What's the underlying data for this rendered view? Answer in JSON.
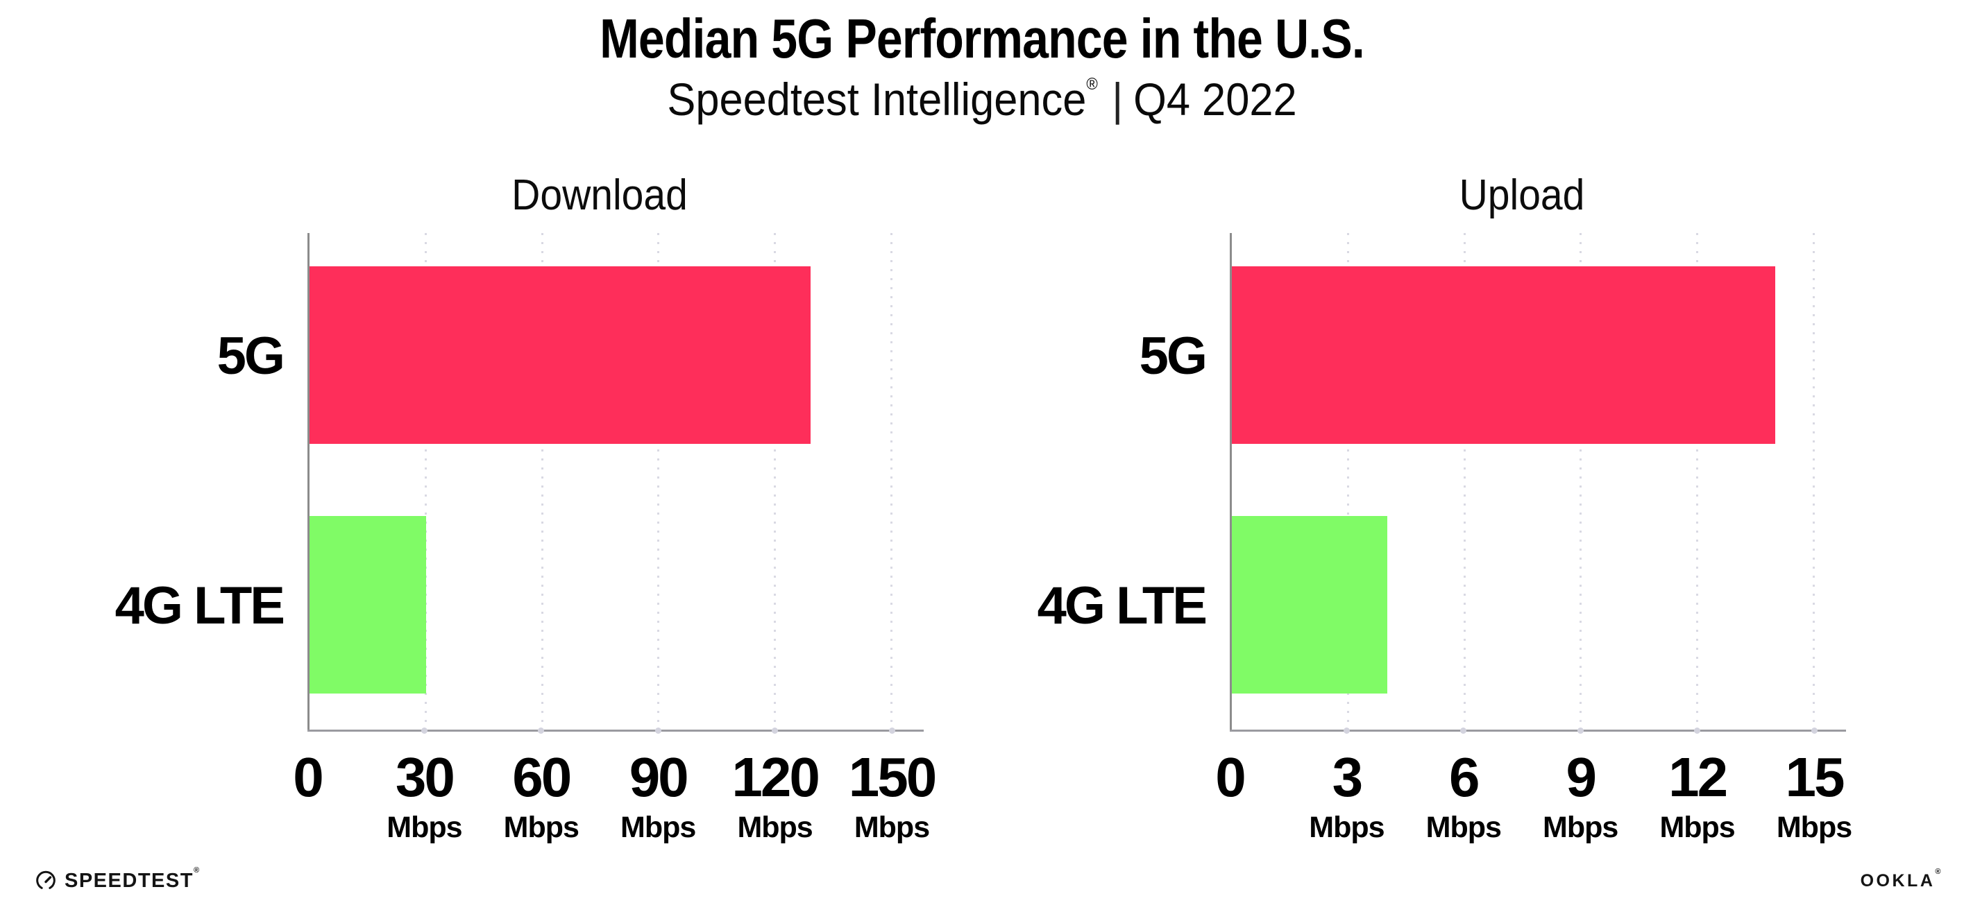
{
  "page": {
    "title": "Median 5G Performance in the U.S.",
    "subtitle": {
      "brand": "Speedtest Intelligence",
      "registered_mark": "®",
      "separator": "|",
      "period": "Q4 2022"
    }
  },
  "chart_data": [
    {
      "type": "bar",
      "orientation": "horizontal",
      "title": "Download",
      "categories": [
        "5G",
        "4G LTE"
      ],
      "values": [
        129,
        30
      ],
      "unit": "Mbps",
      "xlim": [
        0,
        150
      ],
      "xticks": [
        0,
        30,
        60,
        90,
        120,
        150
      ],
      "grid": "dotted-vertical",
      "legend": "none",
      "bar_colors": [
        "#fe2e5a",
        "#80fb66"
      ]
    },
    {
      "type": "bar",
      "orientation": "horizontal",
      "title": "Upload",
      "categories": [
        "5G",
        "4G LTE"
      ],
      "values": [
        14,
        4
      ],
      "unit": "Mbps",
      "xlim": [
        0,
        15
      ],
      "xticks": [
        0,
        3,
        6,
        9,
        12,
        15
      ],
      "grid": "dotted-vertical",
      "legend": "none",
      "bar_colors": [
        "#fe2e5a",
        "#80fb66"
      ]
    }
  ],
  "footer": {
    "speedtest_wordmark": "SPEEDTEST",
    "speedtest_trademark": "®",
    "ookla_wordmark": "OOKLA",
    "ookla_trademark": "®"
  },
  "colors": {
    "bar_5g": "#fe2e5a",
    "bar_4g_lte": "#80fb66",
    "gridline": "#d9d9e3",
    "y_axis": "#8c8c8c",
    "x_axis": "#9a9aa0",
    "text": "#000000",
    "background": "#ffffff"
  }
}
